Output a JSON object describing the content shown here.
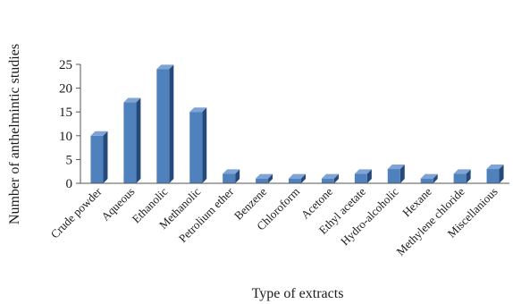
{
  "chart_data": {
    "type": "bar",
    "xlabel": "Type of extracts",
    "ylabel": "Number of anthelmintic studies",
    "ylim": [
      0,
      25
    ],
    "yticks": [
      0,
      5,
      10,
      15,
      20,
      25
    ],
    "categories": [
      "Crude powder",
      "Aqueous",
      "Ethanolic",
      "Methanolic",
      "Petrolium ether",
      "Benzene",
      "Chloroform",
      "Acetone",
      "Ethyl acetate",
      "Hydro-alcoholic",
      "Hexane",
      "Methylene chloride",
      "Miscellanious"
    ],
    "values": [
      10,
      17,
      24,
      15,
      2,
      1,
      1,
      1,
      2,
      3,
      1,
      2,
      3
    ],
    "style": {
      "bar_front": "#4f81bd",
      "bar_side": "#24497a",
      "bar_top": "#7ea3d4",
      "grid": false
    }
  }
}
